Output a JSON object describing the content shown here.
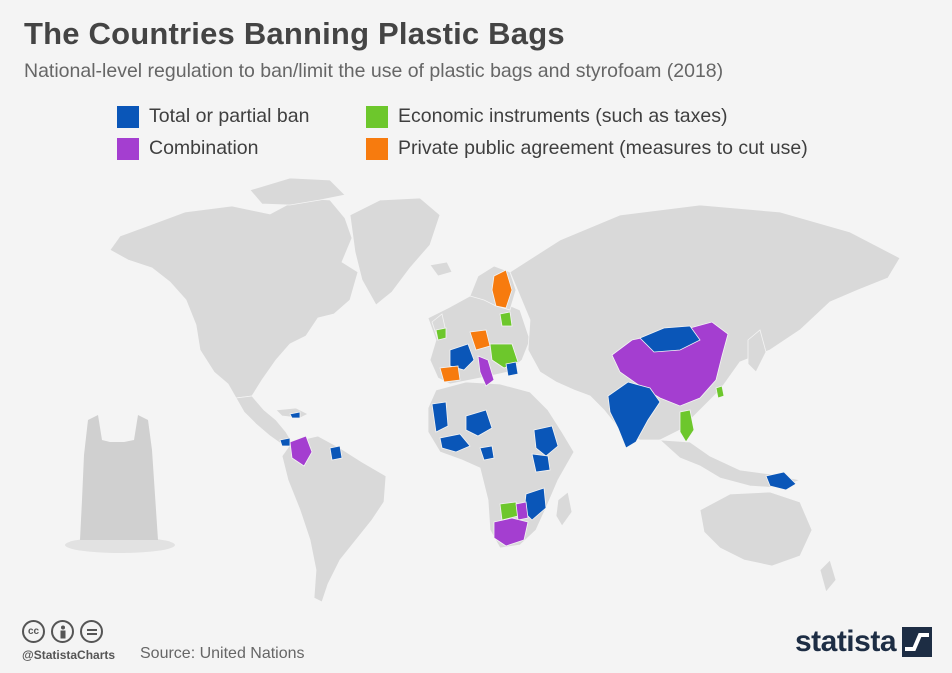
{
  "header": {
    "title": "The Countries Banning Plastic Bags",
    "subtitle": "National-level regulation to ban/limit the use of plastic bags and styrofoam (2018)"
  },
  "legend": [
    {
      "label": "Total or partial ban",
      "color": "#0a56b8"
    },
    {
      "label": "Economic instruments (such as taxes)",
      "color": "#6dc72c"
    },
    {
      "label": "Combination",
      "color": "#a43ed0"
    },
    {
      "label": "Private public agreement (measures to cut use)",
      "color": "#f77b0e"
    }
  ],
  "map": {
    "land_color": "#d9d9d9",
    "icon": "plastic-bag-icon"
  },
  "footer": {
    "handle": "@StatistaCharts",
    "source": "Source: United Nations",
    "brand": "statista"
  }
}
